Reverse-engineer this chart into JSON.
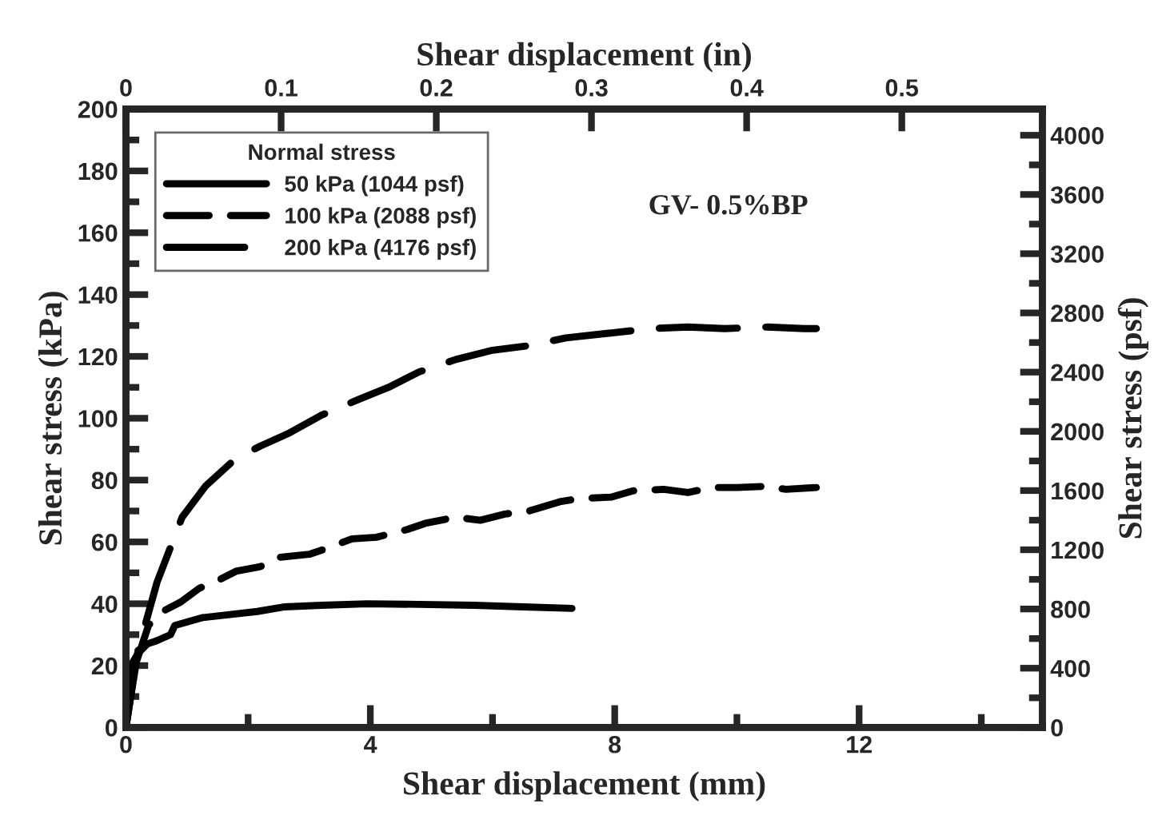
{
  "chart_data": {
    "type": "line",
    "xlabel": "Shear displacement (mm)",
    "ylabel": "Shear stress (kPa)",
    "y2label": "Shear stress (psf)",
    "x2label": "Shear displacement (in)",
    "legend_title": "Normal stress",
    "legend": "top left",
    "annotations": [
      "GV- 0.5%BP"
    ],
    "xlim": [
      0,
      15
    ],
    "xticks": [
      0,
      {
        "value": 2,
        "label": null
      },
      4,
      {
        "value": 6,
        "label": null
      },
      8,
      {
        "value": 10,
        "label": null
      },
      12,
      {
        "value": 14,
        "label": null
      }
    ],
    "ylim": [
      0,
      200
    ],
    "yticks": [
      0,
      {
        "value": 10,
        "label": null
      },
      20,
      {
        "value": 30,
        "label": null
      },
      40,
      {
        "value": 50,
        "label": null
      },
      60,
      {
        "value": 70,
        "label": null
      },
      80,
      {
        "value": 90,
        "label": null
      },
      100,
      {
        "value": 110,
        "label": null
      },
      120,
      {
        "value": 130,
        "label": null
      },
      140,
      {
        "value": 150,
        "label": null
      },
      160,
      {
        "value": 170,
        "label": null
      },
      180,
      {
        "value": 190,
        "label": null
      },
      200
    ],
    "x2lim": [
      0,
      0.5906
    ],
    "x2ticks": [
      0,
      0.1,
      0.2,
      0.3,
      0.4,
      0.5
    ],
    "y2lim": [
      0,
      4177
    ],
    "y2ticks": [
      0,
      {
        "value": 200,
        "label": null
      },
      400,
      {
        "value": 600,
        "label": null
      },
      800,
      {
        "value": 1000,
        "label": null
      },
      1200,
      {
        "value": 1400,
        "label": null
      },
      1600,
      {
        "value": 1800,
        "label": null
      },
      2000,
      {
        "value": 2200,
        "label": null
      },
      2400,
      {
        "value": 2600,
        "label": null
      },
      2800,
      {
        "value": 3000,
        "label": null
      },
      3200,
      {
        "value": 3400,
        "label": null
      },
      3600,
      {
        "value": 3800,
        "label": null
      },
      4000
    ],
    "series": [
      {
        "name": "50 kPa (1044 psf)",
        "color": "#000000",
        "line_style": "solid",
        "x": [
          0,
          0.08,
          0.2,
          0.35,
          0.5,
          0.73,
          0.8,
          1.25,
          1.7,
          2.15,
          2.6,
          3.2,
          3.95,
          4.8,
          5.7,
          6.5,
          7.3
        ],
        "values": [
          0,
          20,
          24,
          27,
          28,
          30,
          33,
          35.5,
          36.5,
          37.5,
          39,
          39.5,
          40,
          39.8,
          39.5,
          39,
          38.5
        ]
      },
      {
        "name": "100 kPa (2088 psf)",
        "color": "#000000",
        "line_style": "dashed",
        "x": [
          0,
          0.15,
          0.37,
          0.6,
          0.9,
          1.2,
          1.55,
          1.8,
          2.2,
          2.5,
          3.0,
          3.3,
          3.7,
          4.1,
          4.6,
          4.9,
          5.4,
          5.8,
          6.2,
          6.6,
          7.1,
          7.4,
          7.95,
          8.3,
          8.8,
          9.2,
          9.6,
          10.0,
          10.5,
          10.8,
          11.3
        ],
        "values": [
          0,
          20,
          33,
          37.5,
          40.6,
          45,
          48,
          50.5,
          52,
          55,
          56,
          58,
          61,
          61.5,
          64,
          66,
          68,
          67,
          69,
          70,
          73,
          74,
          74.5,
          76.5,
          77,
          76,
          77.6,
          77.6,
          78,
          77,
          77.6
        ]
      },
      {
        "name": "200 kPa (4176 psf)",
        "color": "#000000",
        "line_style": "dashed",
        "x": [
          0,
          0.2,
          0.51,
          0.92,
          1.3,
          1.8,
          2.2,
          2.65,
          3.2,
          3.8,
          4.3,
          4.8,
          5.4,
          6.0,
          6.6,
          7.2,
          7.9,
          8.6,
          9.2,
          9.8,
          10.5,
          11.1,
          11.3
        ],
        "values": [
          0,
          25,
          47,
          68,
          78,
          87,
          91,
          95,
          101,
          106,
          110,
          115,
          119,
          122,
          123.5,
          126,
          127.5,
          129,
          129.5,
          129,
          129.5,
          129,
          129
        ]
      }
    ]
  }
}
